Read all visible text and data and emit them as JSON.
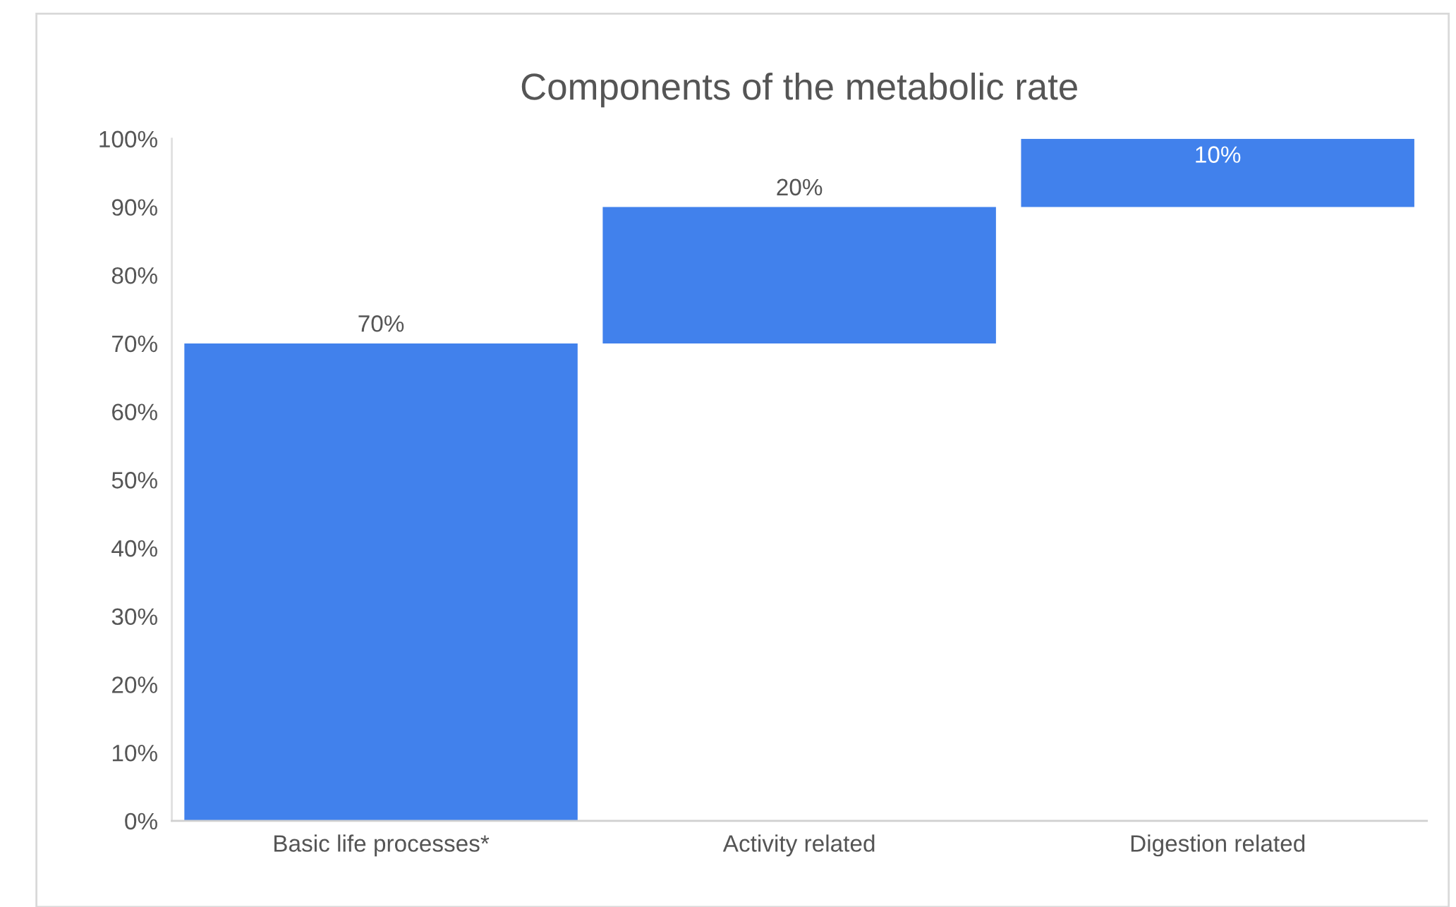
{
  "chart_data": {
    "type": "bar",
    "title": "Components of the metabolic rate",
    "categories": [
      "Basic life processes*",
      "Activity related",
      "Digestion related"
    ],
    "values": [
      70,
      20,
      10
    ],
    "base": [
      0,
      70,
      90
    ],
    "color": "#4181ec",
    "value_labels": [
      "70%",
      "20%",
      "10%"
    ],
    "ylim": [
      0,
      100
    ],
    "yticks": [
      {
        "value": 0,
        "label": "0%"
      },
      {
        "value": 10,
        "label": "10%"
      },
      {
        "value": 20,
        "label": "20%"
      },
      {
        "value": 30,
        "label": "30%"
      },
      {
        "value": 40,
        "label": "40%"
      },
      {
        "value": 50,
        "label": "50%"
      },
      {
        "value": 60,
        "label": "60%"
      },
      {
        "value": 70,
        "label": "70%"
      },
      {
        "value": 80,
        "label": "80%"
      },
      {
        "value": 90,
        "label": "90%"
      },
      {
        "value": 100,
        "label": "100%"
      }
    ],
    "grid": false
  }
}
